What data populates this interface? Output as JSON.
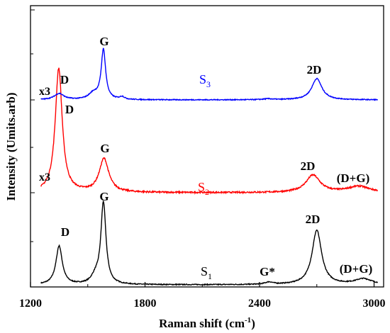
{
  "chart_data": {
    "type": "line",
    "xlabel": "Raman shift (cm",
    "xlabel_sup": "-1",
    "xlabel_tail": ")",
    "ylabel": "Intensity (Umits.arb)",
    "xlim": [
      1200,
      3050
    ],
    "x_ticks": [
      1200,
      1800,
      2400,
      3000
    ],
    "grid": false,
    "series": [
      {
        "name": "S",
        "subscript": "1",
        "color": "#000000",
        "offset": 0,
        "peaks": [
          {
            "center": 1350,
            "height": 0.34,
            "width": 20
          },
          {
            "center": 1582,
            "height": 0.72,
            "width": 16
          },
          {
            "center": 1540,
            "height": 0.06,
            "width": 25
          },
          {
            "center": 2450,
            "height": 0.02,
            "width": 25
          },
          {
            "center": 2700,
            "height": 0.48,
            "width": 30
          },
          {
            "center": 2945,
            "height": 0.05,
            "width": 55
          }
        ],
        "noise": 0.004
      },
      {
        "name": "S",
        "subscript": "2",
        "color": "#ff0000",
        "offset": 1,
        "peaks": [
          {
            "center": 1348,
            "height": 1.0,
            "width": 22
          },
          {
            "center": 1585,
            "height": 0.27,
            "width": 30
          },
          {
            "center": 2680,
            "height": 0.14,
            "width": 45
          },
          {
            "center": 2920,
            "height": 0.05,
            "width": 70
          }
        ],
        "noise": 0.006
      },
      {
        "name": "S",
        "subscript": "3",
        "color": "#0000ff",
        "offset": 2,
        "peaks": [
          {
            "center": 1350,
            "height": 0.07,
            "width": 30
          },
          {
            "center": 1582,
            "height": 0.56,
            "width": 14
          },
          {
            "center": 1530,
            "height": 0.07,
            "width": 30
          },
          {
            "center": 1680,
            "height": 0.03,
            "width": 15
          },
          {
            "center": 2445,
            "height": 0.01,
            "width": 30
          },
          {
            "center": 2700,
            "height": 0.24,
            "width": 32
          }
        ],
        "noise": 0.005
      }
    ],
    "annotations": [
      {
        "text": "D",
        "x": 1345,
        "series": 2
      },
      {
        "text": "G",
        "x": 1580,
        "series": 2
      },
      {
        "text": "2D",
        "x": 2700,
        "series": 2
      },
      {
        "text": "x3",
        "series": 2
      },
      {
        "text": "D",
        "x": 1365,
        "series": 1
      },
      {
        "text": "G",
        "x": 1580,
        "series": 1
      },
      {
        "text": "2D",
        "x": 2675,
        "series": 1
      },
      {
        "text": "(D+G)",
        "x": 2940,
        "series": 1
      },
      {
        "text": "x3",
        "series": 1
      },
      {
        "text": "D",
        "x": 1345,
        "series": 0
      },
      {
        "text": "G",
        "x": 1580,
        "series": 0
      },
      {
        "text": "G*",
        "x": 2445,
        "series": 0
      },
      {
        "text": "2D",
        "x": 2695,
        "series": 0
      },
      {
        "text": "(D+G)",
        "x": 2950,
        "series": 0
      }
    ]
  }
}
